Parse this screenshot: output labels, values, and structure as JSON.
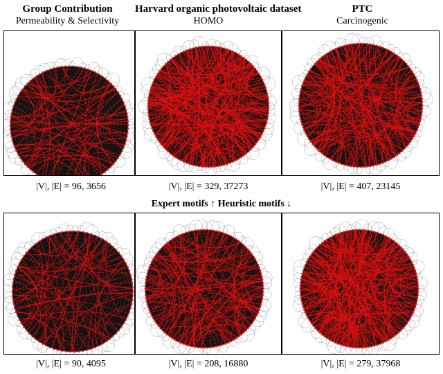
{
  "columns": [
    {
      "title": "Group Contribution",
      "subtitle": "Permeability & Selectivity"
    },
    {
      "title": "Harvard organic photovoltaic dataset",
      "subtitle": "HOMO"
    },
    {
      "title": "PTC",
      "subtitle": "Carcinogenic"
    }
  ],
  "top_row": [
    {
      "caption": "|V|, |E| = 96, 3656",
      "nodes": 96,
      "edges": 3656
    },
    {
      "caption": "|V|, |E| = 329, 37273",
      "nodes": 329,
      "edges": 37273
    },
    {
      "caption": "|V|, |E| = 407, 23145",
      "nodes": 407,
      "edges": 23145
    }
  ],
  "separator": "Expert motifs ↑  Heuristic motifs ↓",
  "bottom_row": [
    {
      "caption": "|V|, |E| = 90, 4095",
      "nodes": 90,
      "edges": 4095
    },
    {
      "caption": "|V|, |E| = 208, 16880",
      "nodes": 208,
      "edges": 16880
    },
    {
      "caption": "|V|, |E| = 279, 37968",
      "nodes": 279,
      "edges": 37968
    }
  ],
  "colors": {
    "edge": "#e01010",
    "disk": "#141010",
    "node_ring": "#9a9a9a"
  }
}
